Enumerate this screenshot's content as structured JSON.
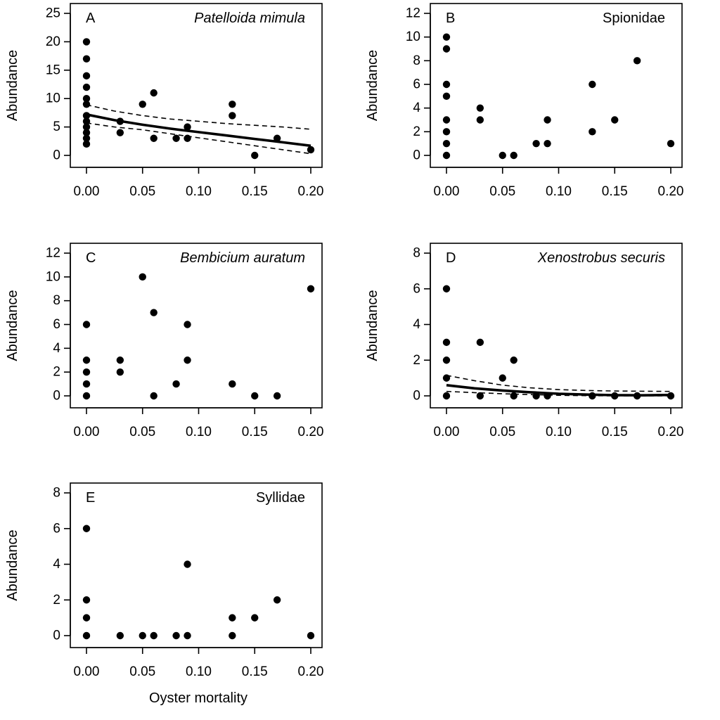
{
  "figure": {
    "xlabel": "Oyster mortality"
  },
  "chart_data": [
    {
      "type": "scatter",
      "letter": "A",
      "title": "Patelloida mimula",
      "title_italic": true,
      "ylabel": "Abundance",
      "xlim": [
        0,
        0.2
      ],
      "ylim": [
        0,
        25
      ],
      "xticks": [
        "0.00",
        "0.05",
        "0.10",
        "0.15",
        "0.20"
      ],
      "yticks": [
        "0",
        "5",
        "10",
        "15",
        "20",
        "25"
      ],
      "points": [
        [
          0,
          20
        ],
        [
          0,
          17
        ],
        [
          0,
          14
        ],
        [
          0,
          12
        ],
        [
          0,
          10
        ],
        [
          0,
          9
        ],
        [
          0,
          7
        ],
        [
          0,
          6
        ],
        [
          0,
          5
        ],
        [
          0,
          4
        ],
        [
          0,
          3
        ],
        [
          0,
          2
        ],
        [
          0.03,
          6
        ],
        [
          0.03,
          4
        ],
        [
          0.05,
          9
        ],
        [
          0.06,
          11
        ],
        [
          0.06,
          3
        ],
        [
          0.08,
          3
        ],
        [
          0.09,
          5
        ],
        [
          0.09,
          3
        ],
        [
          0.13,
          9
        ],
        [
          0.13,
          7
        ],
        [
          0.15,
          0
        ],
        [
          0.17,
          3
        ],
        [
          0.2,
          1
        ]
      ],
      "fit": {
        "x": [
          0,
          0.025,
          0.05,
          0.075,
          0.1,
          0.125,
          0.15,
          0.175,
          0.2
        ],
        "y": [
          7.2,
          6.2,
          5.4,
          4.7,
          4.1,
          3.5,
          2.9,
          2.3,
          1.7
        ],
        "lower": [
          5.7,
          5.0,
          4.5,
          3.8,
          3.1,
          2.4,
          1.7,
          1.0,
          0.3
        ],
        "upper": [
          8.9,
          7.8,
          7.0,
          6.4,
          6.0,
          5.6,
          5.3,
          5.0,
          4.6
        ]
      }
    },
    {
      "type": "scatter",
      "letter": "B",
      "title": "Spionidae",
      "title_italic": false,
      "ylabel": "Abundance",
      "xlim": [
        0,
        0.2
      ],
      "ylim": [
        0,
        12
      ],
      "xticks": [
        "0.00",
        "0.05",
        "0.10",
        "0.15",
        "0.20"
      ],
      "yticks": [
        "0",
        "2",
        "4",
        "6",
        "8",
        "10",
        "12"
      ],
      "points": [
        [
          0,
          10
        ],
        [
          0,
          9
        ],
        [
          0,
          6
        ],
        [
          0,
          5
        ],
        [
          0,
          3
        ],
        [
          0,
          2
        ],
        [
          0,
          1
        ],
        [
          0,
          0
        ],
        [
          0.03,
          4
        ],
        [
          0.03,
          3
        ],
        [
          0.05,
          0
        ],
        [
          0.06,
          0
        ],
        [
          0.08,
          1
        ],
        [
          0.09,
          3
        ],
        [
          0.09,
          1
        ],
        [
          0.13,
          6
        ],
        [
          0.13,
          2
        ],
        [
          0.15,
          3
        ],
        [
          0.17,
          8
        ],
        [
          0.2,
          1
        ]
      ]
    },
    {
      "type": "scatter",
      "letter": "C",
      "title": "Bembicium auratum",
      "title_italic": true,
      "ylabel": "Abundance",
      "xlim": [
        0,
        0.2
      ],
      "ylim": [
        0,
        12
      ],
      "xticks": [
        "0.00",
        "0.05",
        "0.10",
        "0.15",
        "0.20"
      ],
      "yticks": [
        "0",
        "2",
        "4",
        "6",
        "8",
        "10",
        "12"
      ],
      "points": [
        [
          0,
          6
        ],
        [
          0,
          3
        ],
        [
          0,
          2
        ],
        [
          0,
          1
        ],
        [
          0,
          0
        ],
        [
          0.03,
          3
        ],
        [
          0.03,
          2
        ],
        [
          0.05,
          10
        ],
        [
          0.06,
          7
        ],
        [
          0.06,
          0
        ],
        [
          0.08,
          1
        ],
        [
          0.09,
          6
        ],
        [
          0.09,
          3
        ],
        [
          0.13,
          1
        ],
        [
          0.15,
          0
        ],
        [
          0.17,
          0
        ],
        [
          0.2,
          9
        ]
      ]
    },
    {
      "type": "scatter",
      "letter": "D",
      "title": "Xenostrobus securis",
      "title_italic": true,
      "ylabel": "Abundance",
      "xlim": [
        0,
        0.2
      ],
      "ylim": [
        0,
        8
      ],
      "xticks": [
        "0.00",
        "0.05",
        "0.10",
        "0.15",
        "0.20"
      ],
      "yticks": [
        "0",
        "2",
        "4",
        "6",
        "8"
      ],
      "points": [
        [
          0,
          6
        ],
        [
          0,
          3
        ],
        [
          0,
          2
        ],
        [
          0,
          1
        ],
        [
          0,
          0
        ],
        [
          0.03,
          3
        ],
        [
          0.03,
          0
        ],
        [
          0.05,
          1
        ],
        [
          0.06,
          2
        ],
        [
          0.06,
          0
        ],
        [
          0.08,
          0
        ],
        [
          0.09,
          0
        ],
        [
          0.13,
          0
        ],
        [
          0.15,
          0
        ],
        [
          0.17,
          0
        ],
        [
          0.2,
          0
        ]
      ],
      "fit": {
        "x": [
          0,
          0.025,
          0.05,
          0.075,
          0.1,
          0.125,
          0.15,
          0.175,
          0.2
        ],
        "y": [
          0.6,
          0.42,
          0.3,
          0.2,
          0.12,
          0.07,
          0.04,
          0.03,
          0.05
        ],
        "lower": [
          0.25,
          0.18,
          0.12,
          0.07,
          0.03,
          0.01,
          0.0,
          0.0,
          0.0
        ],
        "upper": [
          1.15,
          0.85,
          0.6,
          0.45,
          0.35,
          0.3,
          0.27,
          0.26,
          0.25
        ]
      }
    },
    {
      "type": "scatter",
      "letter": "E",
      "title": "Syllidae",
      "title_italic": false,
      "ylabel": "Abundance",
      "xlim": [
        0,
        0.2
      ],
      "ylim": [
        0,
        8
      ],
      "xticks": [
        "0.00",
        "0.05",
        "0.10",
        "0.15",
        "0.20"
      ],
      "yticks": [
        "0",
        "2",
        "4",
        "6",
        "8"
      ],
      "points": [
        [
          0,
          6
        ],
        [
          0,
          2
        ],
        [
          0,
          1
        ],
        [
          0,
          0
        ],
        [
          0.03,
          0
        ],
        [
          0.05,
          0
        ],
        [
          0.06,
          0
        ],
        [
          0.08,
          0
        ],
        [
          0.09,
          4
        ],
        [
          0.09,
          0
        ],
        [
          0.13,
          1
        ],
        [
          0.13,
          0
        ],
        [
          0.15,
          1
        ],
        [
          0.17,
          2
        ],
        [
          0.2,
          0
        ]
      ]
    }
  ]
}
